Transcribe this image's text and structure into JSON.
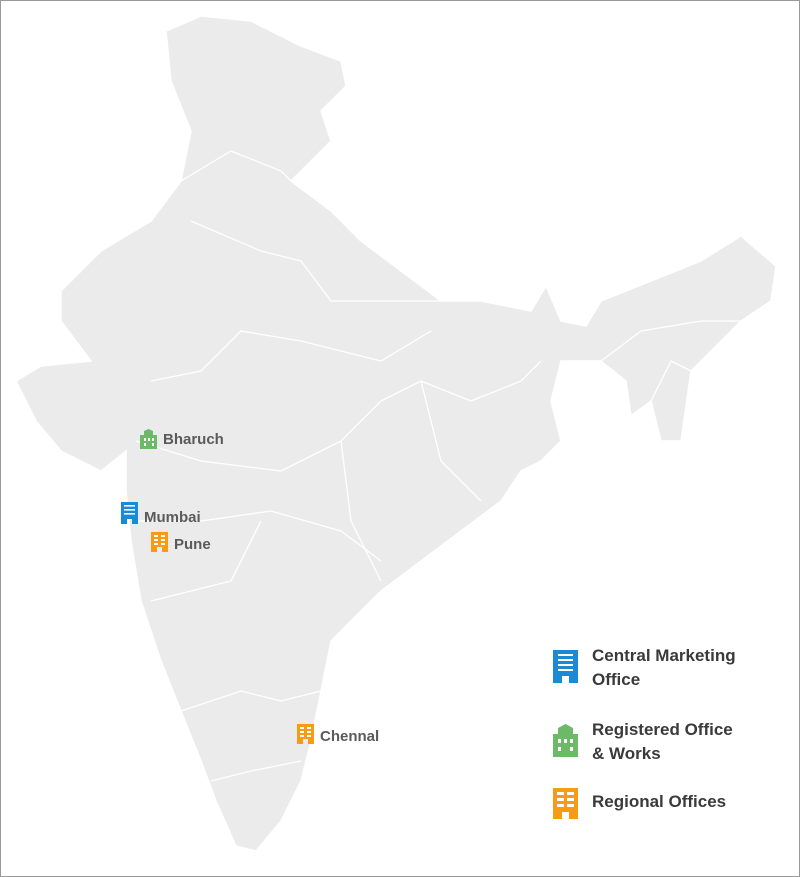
{
  "colors": {
    "land": "#ebebeb",
    "borders": "#ffffff",
    "central": "#1a8ad4",
    "registered": "#6cba68",
    "regional": "#f59b14"
  },
  "cities": [
    {
      "name": "Bharuch",
      "type": "registered",
      "icon": "green-building-icon"
    },
    {
      "name": "Mumbai",
      "type": "central",
      "icon": "blue-building-icon"
    },
    {
      "name": "Pune",
      "type": "regional",
      "icon": "orange-building-icon"
    },
    {
      "name": "Chennal",
      "type": "regional",
      "icon": "orange-building-icon"
    }
  ],
  "legend": [
    {
      "line1": "Central Marketing",
      "line2": "Office",
      "type": "central"
    },
    {
      "line1": "Registered Office",
      "line2": "& Works",
      "type": "registered"
    },
    {
      "line1": "Regional Offices",
      "line2": "",
      "type": "regional"
    }
  ]
}
